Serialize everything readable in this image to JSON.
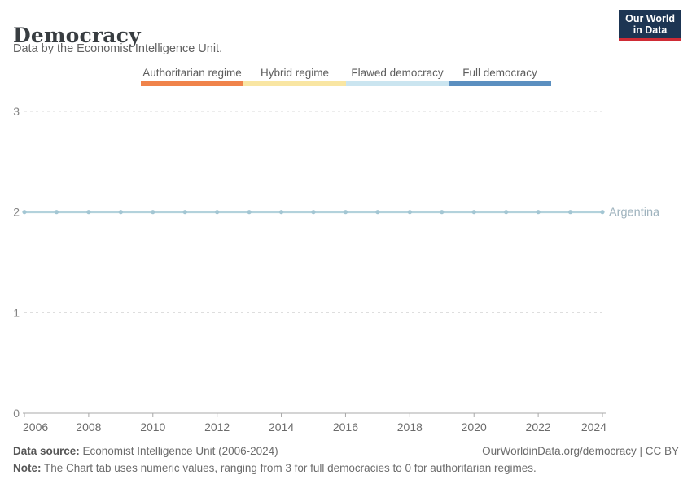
{
  "header": {
    "title": "Democracy",
    "subtitle": "Data by the Economist Intelligence Unit.",
    "logo": {
      "line1": "Our World",
      "line2": "in Data",
      "bg": "#1d3553",
      "accent": "#cf2b35"
    }
  },
  "legend": {
    "items": [
      {
        "label": "Authoritarian regime",
        "color": "#f0834a"
      },
      {
        "label": "Hybrid regime",
        "color": "#f9e6a3"
      },
      {
        "label": "Flawed democracy",
        "color": "#cbe5f0"
      },
      {
        "label": "Full democracy",
        "color": "#5b8fc0"
      }
    ]
  },
  "chart_data": {
    "type": "line",
    "title": "Democracy",
    "xlabel": "",
    "ylabel": "",
    "xlim": [
      2006,
      2024
    ],
    "ylim": [
      0,
      3
    ],
    "yticks": [
      0,
      1,
      2,
      3
    ],
    "xticks": [
      2006,
      2008,
      2010,
      2012,
      2014,
      2016,
      2018,
      2020,
      2022,
      2024
    ],
    "grid": "horizontal-dashed",
    "legend_position": "top-center",
    "x": [
      2006,
      2007,
      2008,
      2009,
      2010,
      2011,
      2012,
      2013,
      2014,
      2015,
      2016,
      2017,
      2018,
      2019,
      2020,
      2021,
      2022,
      2023,
      2024
    ],
    "series": [
      {
        "name": "Argentina",
        "values": [
          2,
          2,
          2,
          2,
          2,
          2,
          2,
          2,
          2,
          2,
          2,
          2,
          2,
          2,
          2,
          2,
          2,
          2,
          2
        ],
        "line_color": "#b3d2dc",
        "marker_color": "#a3c6d3",
        "label_color": "#9fb3be"
      }
    ],
    "colors": {
      "gridline": "#d9d9d9",
      "axis": "#a8a8a8",
      "ytick_label": "#848484",
      "xtick_label": "#6b6b6b"
    }
  },
  "footer": {
    "datasource_label": "Data source:",
    "datasource_text": " Economist Intelligence Unit (2006-2024)",
    "attribution": "OurWorldinData.org/democracy | CC BY",
    "note_label": "Note:",
    "note_text": " The Chart tab uses numeric values, ranging from 3 for full democracies to 0 for authoritarian regimes."
  }
}
